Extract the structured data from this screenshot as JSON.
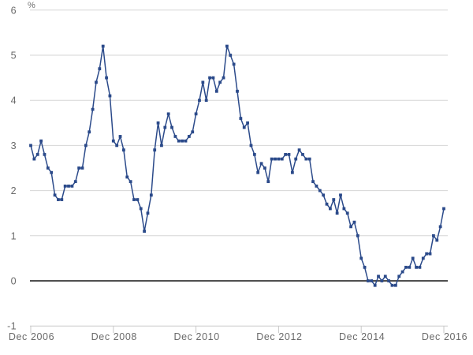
{
  "chart": {
    "unit_label": "%",
    "line_color": "#2b4a8a",
    "grid_color": "#d6d6d6",
    "zero_line_color": "#4f4f4f",
    "axis_line_color": "#c9c9c9",
    "axis_text_color": "#6a6a6a",
    "y_tick_labels": [
      "6",
      "5",
      "4",
      "3",
      "2",
      "1",
      "0",
      "-1"
    ],
    "x_tick_labels": [
      "Dec 2006",
      "Dec 2008",
      "Dec 2010",
      "Dec 2012",
      "Dec 2014",
      "Dec 2016"
    ]
  },
  "chart_data": {
    "type": "line",
    "y_unit": "%",
    "ylim": [
      -1,
      6
    ],
    "grid": true,
    "legend": false,
    "marker": "square",
    "x_first": "Dec 2006",
    "x_last": "Dec 2016",
    "x_step": "1 month",
    "n_points": 121,
    "x_tick_labels": [
      "Dec 2006",
      "Dec 2008",
      "Dec 2010",
      "Dec 2012",
      "Dec 2014",
      "Dec 2016"
    ],
    "y_ticks": [
      6,
      5,
      4,
      3,
      2,
      1,
      0,
      -1
    ],
    "values": [
      3.0,
      2.7,
      2.8,
      3.1,
      2.8,
      2.5,
      2.4,
      1.9,
      1.8,
      1.8,
      2.1,
      2.1,
      2.1,
      2.2,
      2.5,
      2.5,
      3.0,
      3.3,
      3.8,
      4.4,
      4.7,
      5.2,
      4.5,
      4.1,
      3.1,
      3.0,
      3.2,
      2.9,
      2.3,
      2.2,
      1.8,
      1.8,
      1.6,
      1.1,
      1.5,
      1.9,
      2.9,
      3.5,
      3.0,
      3.4,
      3.7,
      3.4,
      3.2,
      3.1,
      3.1,
      3.1,
      3.2,
      3.3,
      3.7,
      4.0,
      4.4,
      4.0,
      4.5,
      4.5,
      4.2,
      4.4,
      4.5,
      5.2,
      5.0,
      4.8,
      4.2,
      3.6,
      3.4,
      3.5,
      3.0,
      2.8,
      2.4,
      2.6,
      2.5,
      2.2,
      2.7,
      2.7,
      2.7,
      2.7,
      2.8,
      2.8,
      2.4,
      2.7,
      2.9,
      2.8,
      2.7,
      2.7,
      2.2,
      2.1,
      2.0,
      1.9,
      1.7,
      1.6,
      1.8,
      1.5,
      1.9,
      1.6,
      1.5,
      1.2,
      1.3,
      1.0,
      0.5,
      0.3,
      0.0,
      0.0,
      -0.1,
      0.1,
      0.0,
      0.1,
      0.0,
      -0.1,
      -0.1,
      0.1,
      0.2,
      0.3,
      0.3,
      0.5,
      0.3,
      0.3,
      0.5,
      0.6,
      0.6,
      1.0,
      0.9,
      1.2,
      1.6
    ]
  }
}
